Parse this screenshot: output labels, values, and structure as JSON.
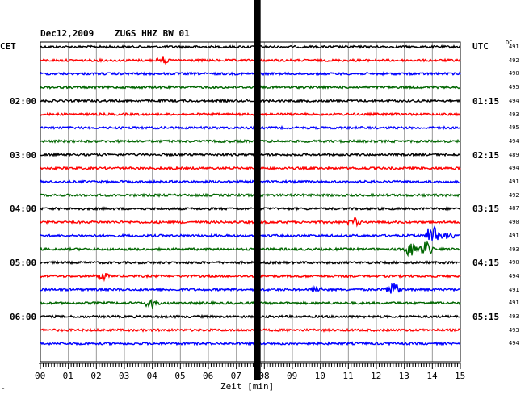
{
  "header": {
    "date": "Dec12,2009",
    "station": "ZUGS HHZ BW 01"
  },
  "labels": {
    "left_tz": "CET",
    "right_tz": "UTC",
    "dc": "DC",
    "x_axis": "Zeit [min]",
    "corner": "\""
  },
  "trace_colors": [
    "#000000",
    "#ff0000",
    "#0000ff",
    "#006600"
  ],
  "left_times": [
    {
      "row": 4,
      "text": "02:00"
    },
    {
      "row": 8,
      "text": "03:00"
    },
    {
      "row": 12,
      "text": "04:00"
    },
    {
      "row": 16,
      "text": "05:00"
    },
    {
      "row": 20,
      "text": "06:00"
    }
  ],
  "right_times": [
    {
      "row": 4,
      "text": "01:15"
    },
    {
      "row": 8,
      "text": "02:15"
    },
    {
      "row": 12,
      "text": "03:15"
    },
    {
      "row": 16,
      "text": "04:15"
    },
    {
      "row": 20,
      "text": "05:15"
    }
  ],
  "dc_values": [
    "491",
    "492",
    "490",
    "495",
    "494",
    "493",
    "495",
    "494",
    "489",
    "494",
    "491",
    "492",
    "487",
    "490",
    "491",
    "493",
    "490",
    "494",
    "491",
    "491",
    "493",
    "493",
    "494"
  ],
  "x_ticks": [
    "00",
    "01",
    "02",
    "03",
    "04",
    "05",
    "06",
    "07",
    "08",
    "09",
    "10",
    "11",
    "12",
    "13",
    "14",
    "15"
  ],
  "chart_data": {
    "type": "line",
    "title": "Dec12,2009   ZUGS HHZ BW 01",
    "xlabel": "Zeit [min]",
    "xlim": [
      0,
      15
    ],
    "rows": 23,
    "marker_minute": 7.75,
    "events": [
      {
        "row": 1,
        "minute": 4.4,
        "amp": 5
      },
      {
        "row": 13,
        "minute": 11.2,
        "amp": 6
      },
      {
        "row": 14,
        "minute": 14.0,
        "amp": 14
      },
      {
        "row": 14,
        "minute": 14.5,
        "amp": 6
      },
      {
        "row": 15,
        "minute": 13.2,
        "amp": 9
      },
      {
        "row": 15,
        "minute": 13.8,
        "amp": 10
      },
      {
        "row": 17,
        "minute": 2.2,
        "amp": 5
      },
      {
        "row": 18,
        "minute": 9.9,
        "amp": 6
      },
      {
        "row": 18,
        "minute": 12.6,
        "amp": 11
      },
      {
        "row": 19,
        "minute": 4.0,
        "amp": 9
      }
    ]
  }
}
